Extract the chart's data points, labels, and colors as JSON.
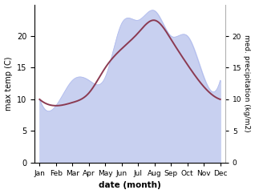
{
  "months": [
    "Jan",
    "Feb",
    "Mar",
    "Apr",
    "May",
    "Jun",
    "Jul",
    "Aug",
    "Sep",
    "Oct",
    "Nov",
    "Dec"
  ],
  "x": [
    0,
    1,
    2,
    3,
    4,
    5,
    6,
    7,
    8,
    9,
    10,
    11
  ],
  "temp": [
    10.0,
    9.0,
    9.5,
    11.0,
    15.0,
    18.0,
    20.5,
    22.5,
    19.5,
    15.5,
    12.0,
    10.0
  ],
  "precip": [
    10.0,
    9.0,
    13.0,
    13.0,
    13.5,
    22.0,
    22.5,
    24.0,
    20.0,
    20.0,
    13.5,
    13.0
  ],
  "temp_color": "#8B3A52",
  "precip_fill_color": "#c8d0f0",
  "precip_line_color": "#b0bbee",
  "ylabel_left": "max temp (C)",
  "ylabel_right": "med. precipitation (kg/m2)",
  "xlabel": "date (month)",
  "ylim": [
    0,
    25
  ],
  "yticks": [
    0,
    5,
    10,
    15,
    20
  ],
  "bg_color": "#ffffff",
  "spine_color": "#aaaaaa"
}
